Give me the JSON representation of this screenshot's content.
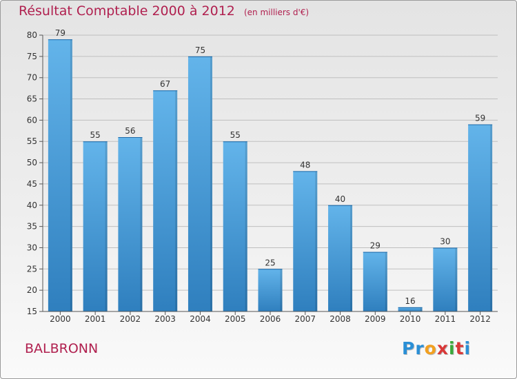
{
  "title": "Résultat Comptable 2000 à 2012",
  "subtitle": "(en milliers d'€)",
  "town": "BALBRONN",
  "logo": {
    "text": "Proxiti",
    "letter_colors": [
      "#2a8fd6",
      "#2a8fd6",
      "#f2a020",
      "#d93838",
      "#3aa83a",
      "#d93838",
      "#2a8fd6"
    ]
  },
  "colors": {
    "bar_light": "#63b4ea",
    "bar_dark": "#2f7fbe",
    "text_accent": "#b0204f",
    "grid": "#bfbfbf"
  },
  "chart_data": {
    "type": "bar",
    "categories": [
      "2000",
      "2001",
      "2002",
      "2003",
      "2004",
      "2005",
      "2006",
      "2007",
      "2008",
      "2009",
      "2010",
      "2011",
      "2012"
    ],
    "values": [
      79,
      55,
      56,
      67,
      75,
      55,
      25,
      48,
      40,
      29,
      16,
      30,
      59
    ],
    "ylim": [
      15,
      80
    ],
    "yticks": [
      15,
      20,
      25,
      30,
      35,
      40,
      45,
      50,
      55,
      60,
      65,
      70,
      75,
      80
    ],
    "grid": true,
    "data_labels": true
  }
}
